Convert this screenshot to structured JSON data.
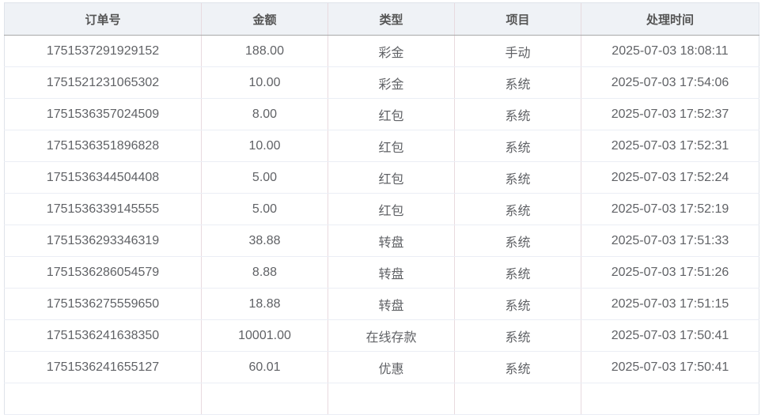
{
  "table": {
    "columns": [
      "订单号",
      "金额",
      "类型",
      "项目",
      "处理时间"
    ],
    "rows": [
      [
        "1751537291929152",
        "188.00",
        "彩金",
        "手动",
        "2025-07-03 18:08:11"
      ],
      [
        "1751521231065302",
        "10.00",
        "彩金",
        "系统",
        "2025-07-03 17:54:06"
      ],
      [
        "1751536357024509",
        "8.00",
        "红包",
        "系统",
        "2025-07-03 17:52:37"
      ],
      [
        "1751536351896828",
        "10.00",
        "红包",
        "系统",
        "2025-07-03 17:52:31"
      ],
      [
        "1751536344504408",
        "5.00",
        "红包",
        "系统",
        "2025-07-03 17:52:24"
      ],
      [
        "1751536339145555",
        "5.00",
        "红包",
        "系统",
        "2025-07-03 17:52:19"
      ],
      [
        "1751536293346319",
        "38.88",
        "转盘",
        "系统",
        "2025-07-03 17:51:33"
      ],
      [
        "1751536286054579",
        "8.88",
        "转盘",
        "系统",
        "2025-07-03 17:51:26"
      ],
      [
        "1751536275559650",
        "18.88",
        "转盘",
        "系统",
        "2025-07-03 17:51:15"
      ],
      [
        "1751536241638350",
        "10001.00",
        "在线存款",
        "系统",
        "2025-07-03 17:50:41"
      ],
      [
        "1751536241655127",
        "60.01",
        "优惠",
        "系统",
        "2025-07-03 17:50:41"
      ],
      [
        "",
        "",
        "",
        "",
        ""
      ]
    ]
  }
}
